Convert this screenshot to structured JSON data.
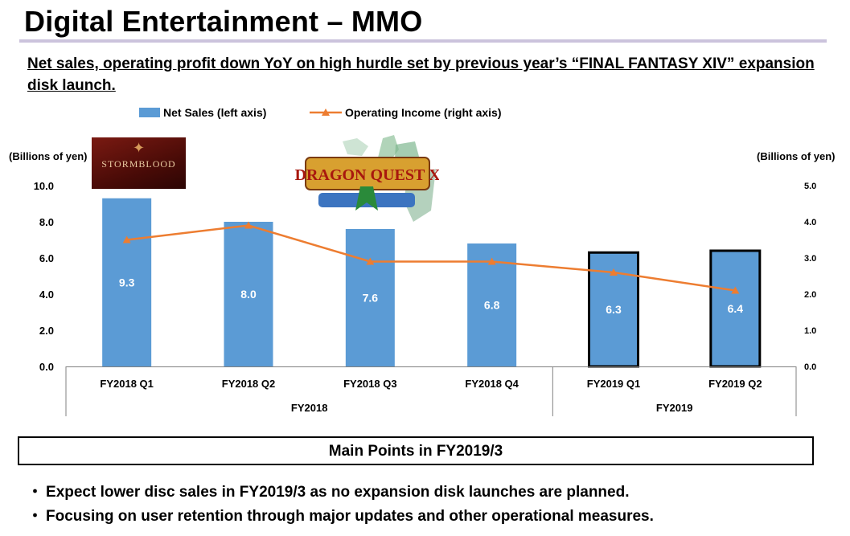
{
  "header": {
    "title": "Digital Entertainment – MMO",
    "subtitle": "Net sales, operating profit down YoY on high hurdle set by previous year’s “FINAL FANTASY XIV” expansion disk launch."
  },
  "logos": {
    "left": {
      "text": "STORMBLOOD",
      "icon": "final-fantasy-xiv-stormblood-logo"
    },
    "right": {
      "text": "DRAGON QUEST X",
      "icon": "dragon-quest-x-logo"
    }
  },
  "chart_data": {
    "type": "bar",
    "categories": [
      "FY2018 Q1",
      "FY2018 Q2",
      "FY2018 Q3",
      "FY2018 Q4",
      "FY2019 Q1",
      "FY2019 Q2"
    ],
    "groups": [
      {
        "label": "FY2018",
        "categories": [
          "FY2018 Q1",
          "FY2018 Q2",
          "FY2018 Q3",
          "FY2018 Q4"
        ]
      },
      {
        "label": "FY2019",
        "categories": [
          "FY2019 Q1",
          "FY2019 Q2"
        ]
      }
    ],
    "series": [
      {
        "name": "Net Sales (left axis)",
        "type": "bar",
        "axis": "left",
        "values": [
          9.3,
          8.0,
          7.6,
          6.8,
          6.3,
          6.4
        ],
        "data_labels": [
          "9.3",
          "8.0",
          "7.6",
          "6.8",
          "6.3",
          "6.4"
        ],
        "highlighted": [
          false,
          false,
          false,
          false,
          true,
          true
        ]
      },
      {
        "name": "Operating Income (right axis)",
        "type": "line",
        "axis": "right",
        "values": [
          3.5,
          3.9,
          2.9,
          2.9,
          2.6,
          2.1
        ]
      }
    ],
    "left_axis": {
      "unit": "(Billions of yen)",
      "ylim": [
        0,
        10
      ],
      "ticks": [
        "0.0",
        "2.0",
        "4.0",
        "6.0",
        "8.0",
        "10.0"
      ]
    },
    "right_axis": {
      "unit": "(Billions of yen)",
      "ylim": [
        0,
        5
      ],
      "ticks": [
        "0.0",
        "1.0",
        "2.0",
        "3.0",
        "4.0",
        "5.0"
      ]
    },
    "grid": false,
    "legend_position": "top",
    "colors": {
      "bar": "#5b9bd5",
      "line": "#ed7d31",
      "highlight_border": "#000000"
    }
  },
  "main_points": {
    "heading": "Main Points in FY2019/3",
    "items": [
      "Expect lower disc sales in FY2019/3 as no expansion disk launches are planned.",
      "Focusing on user retention through major updates and other operational measures."
    ],
    "bullet_symbol": "・"
  }
}
